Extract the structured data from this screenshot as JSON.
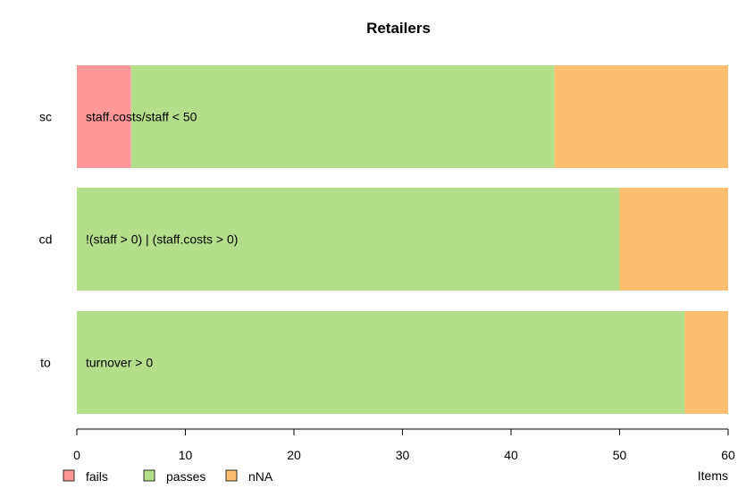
{
  "chart_data": {
    "type": "bar",
    "orientation": "horizontal",
    "stacked": true,
    "title": "Retailers",
    "xlabel": "Items",
    "ylabel": "",
    "xlim": [
      0,
      60
    ],
    "x_ticks": [
      0,
      10,
      20,
      30,
      40,
      50,
      60
    ],
    "categories": [
      "sc",
      "cd",
      "to"
    ],
    "rule_labels": [
      "staff.costs/staff < 50",
      "!(staff > 0) | (staff.costs > 0)",
      "turnover > 0"
    ],
    "series": [
      {
        "name": "fails",
        "color": "#FF9999",
        "values": [
          5,
          0,
          0
        ]
      },
      {
        "name": "passes",
        "color": "#B3DF8A",
        "values": [
          39,
          50,
          56
        ]
      },
      {
        "name": "nNA",
        "color": "#FDBF6F",
        "values": [
          16,
          10,
          4
        ]
      }
    ],
    "grid": false,
    "legend_position": "bottom-left"
  }
}
